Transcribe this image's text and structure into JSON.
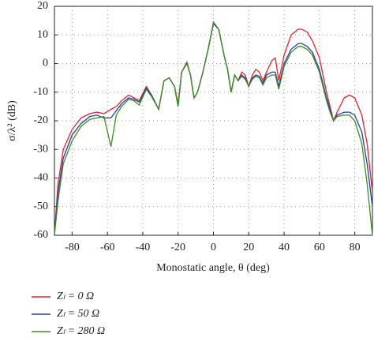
{
  "chart_data": {
    "type": "line",
    "ylabel": "σ/λ² (dB)",
    "xlabel": "Monostatic angle, θ (deg)",
    "xlim": [
      -90,
      90
    ],
    "ylim": [
      -60,
      20
    ],
    "xticks": [
      -80,
      -60,
      -40,
      -20,
      0,
      20,
      40,
      60,
      80
    ],
    "yticks": [
      -60,
      -50,
      -40,
      -30,
      -20,
      -10,
      0,
      10,
      20
    ],
    "grid": true,
    "x": [
      -90,
      -88,
      -85,
      -80,
      -75,
      -70,
      -66,
      -62,
      -58,
      -55,
      -52,
      -48,
      -45,
      -42,
      -38,
      -35,
      -31,
      -28,
      -25,
      -22,
      -20,
      -18,
      -15,
      -13,
      -11,
      -9,
      -6,
      -3,
      0,
      3,
      6,
      8,
      10,
      12,
      14,
      16,
      18,
      20,
      22,
      24,
      26,
      28,
      30,
      33,
      35,
      37,
      40,
      44,
      48,
      50,
      53,
      56,
      60,
      64,
      66,
      68,
      70,
      74,
      77,
      80,
      84,
      87,
      90
    ],
    "series": [
      {
        "name": "Zₗ = 0 Ω",
        "color": "#e8202a",
        "values": [
          -60,
          -42,
          -30,
          -23,
          -19,
          -17.5,
          -17,
          -17.5,
          -16,
          -15,
          -13,
          -11,
          -12,
          -13,
          -8,
          -11,
          -16,
          -6,
          -5,
          -8,
          -14,
          -3,
          0,
          -4,
          -12,
          -10,
          -3,
          5,
          14,
          12,
          3,
          -2,
          -10,
          -4,
          -6,
          -3,
          -4,
          -8,
          -4,
          -2,
          -3,
          -6,
          -3,
          1,
          2,
          -6,
          3,
          10,
          12,
          12,
          11,
          8,
          2,
          -10,
          -15,
          -20,
          -17,
          -12,
          -11,
          -12,
          -18,
          -28,
          -45
        ]
      },
      {
        "name": "Zₗ = 50 Ω",
        "color": "#1f3fb0",
        "values": [
          -60,
          -45,
          -33,
          -25,
          -21,
          -18.5,
          -18,
          -19,
          -19,
          -16.5,
          -14,
          -12,
          -12.5,
          -13.5,
          -8.5,
          -11,
          -16,
          -6,
          -5,
          -8,
          -15,
          -3,
          0.5,
          -4,
          -12,
          -10,
          -3,
          5,
          14,
          12,
          3,
          -2,
          -10,
          -4,
          -6,
          -4,
          -5,
          -8,
          -5,
          -4,
          -4.5,
          -7,
          -4,
          -3,
          -3,
          -8,
          0,
          5,
          7,
          7,
          6,
          4,
          -2,
          -12,
          -16,
          -20,
          -18,
          -17,
          -17,
          -18,
          -24,
          -35,
          -50
        ]
      },
      {
        "name": "Zₗ = 280 Ω",
        "color": "#3a8f1e",
        "values": [
          -60,
          -48,
          -35,
          -27,
          -22,
          -19.5,
          -19,
          -18.5,
          -29,
          -18,
          -15,
          -12.5,
          -13,
          -14.5,
          -9,
          -11.5,
          -16,
          -6,
          -5,
          -8,
          -15,
          -3,
          0.5,
          -4,
          -12,
          -10,
          -3,
          5,
          14.5,
          12,
          3,
          -2,
          -10,
          -4,
          -6,
          -4.5,
          -5.5,
          -8,
          -5.5,
          -4.5,
          -5,
          -7.5,
          -5,
          -4,
          -4,
          -9,
          -1,
          4,
          6,
          6,
          5,
          3,
          -3,
          -13,
          -17,
          -20,
          -18.5,
          -18,
          -18,
          -20,
          -28,
          -42,
          -60
        ]
      }
    ]
  }
}
